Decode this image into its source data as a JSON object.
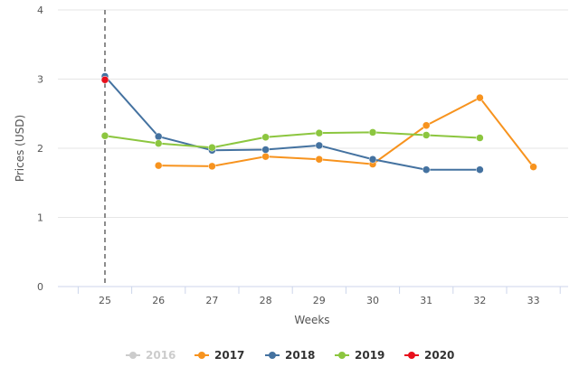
{
  "chart_data": {
    "type": "line",
    "title": "",
    "xlabel": "Weeks",
    "ylabel": "Prices (USD)",
    "categories": [
      "25",
      "26",
      "27",
      "28",
      "29",
      "30",
      "31",
      "32",
      "33"
    ],
    "ylim": [
      0,
      4
    ],
    "yticks": [
      "0",
      "1",
      "2",
      "3",
      "4"
    ],
    "grid": "horizontal",
    "reference_line": {
      "category": "25",
      "style": "dashed",
      "color": "#666666"
    },
    "legend_position": "bottom",
    "series": [
      {
        "name": "2016",
        "color": "#cccccc",
        "visible": false,
        "values": [
          null,
          null,
          null,
          null,
          null,
          null,
          null,
          null,
          null
        ]
      },
      {
        "name": "2017",
        "color": "#f7931e",
        "visible": true,
        "values": [
          null,
          1.75,
          1.74,
          1.88,
          1.84,
          1.77,
          2.33,
          2.73,
          1.73
        ]
      },
      {
        "name": "2018",
        "color": "#4472a0",
        "visible": true,
        "values": [
          3.04,
          2.17,
          1.97,
          1.98,
          2.04,
          1.84,
          1.69,
          1.69,
          null
        ]
      },
      {
        "name": "2019",
        "color": "#8cc63f",
        "visible": true,
        "values": [
          2.18,
          2.07,
          2.01,
          2.16,
          2.22,
          2.23,
          2.19,
          2.15,
          null
        ]
      },
      {
        "name": "2020",
        "color": "#e8101c",
        "visible": true,
        "values": [
          2.99,
          null,
          null,
          null,
          null,
          null,
          null,
          null,
          null
        ]
      }
    ]
  }
}
